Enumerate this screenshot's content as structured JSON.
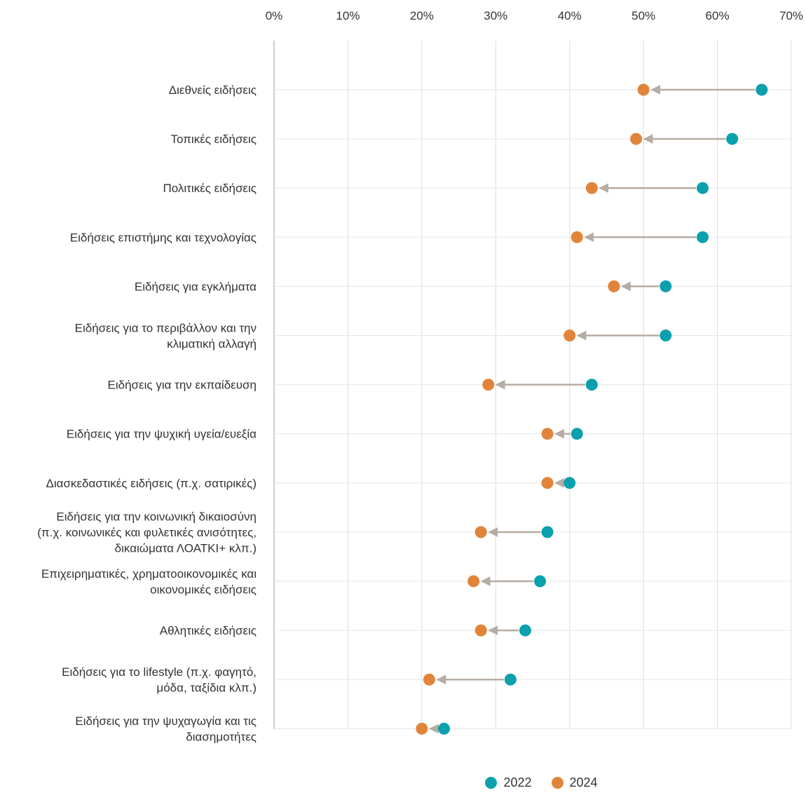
{
  "chart_data": {
    "type": "dumbbell",
    "xlim": [
      0,
      70
    ],
    "x_ticks": [
      "0%",
      "10%",
      "20%",
      "30%",
      "40%",
      "50%",
      "60%",
      "70%"
    ],
    "tick_values": [
      0,
      10,
      20,
      30,
      40,
      50,
      60,
      70
    ],
    "grid": true,
    "legend_position": "bottom",
    "colors": {
      "2022": "#0ca0ad",
      "2024": "#e0843a",
      "arrow": "#b5aca3"
    },
    "categories": [
      [
        "Διεθνείς ειδήσεις"
      ],
      [
        "Τοπικές ειδήσεις"
      ],
      [
        "Πολιτικές ειδήσεις"
      ],
      [
        "Ειδήσεις επιστήμης και τεχνολογίας"
      ],
      [
        "Ειδήσεις για εγκλήματα"
      ],
      [
        "Ειδήσεις για το περιβάλλον και την",
        "κλιματική αλλαγή"
      ],
      [
        "Ειδήσεις για την εκπαίδευση"
      ],
      [
        "Ειδήσεις για την ψυχική υγεία/ευεξία"
      ],
      [
        "Διασκεδαστικές ειδήσεις (π.χ. σατιρικές)"
      ],
      [
        "Ειδήσεις για την κοινωνική δικαιοσύνη",
        "(π.χ. κοινωνικές και φυλετικές ανισότητες,",
        "δικαιώματα ΛΟΑΤΚΙ+ κλπ.)"
      ],
      [
        "Επιχειρηματικές, χρηματοοικονομικές και",
        "οικονομικές ειδήσεις"
      ],
      [
        "Αθλητικές ειδήσεις"
      ],
      [
        "Ειδήσεις για το lifestyle (π.χ. φαγητό,",
        "μόδα, ταξίδια κλπ.)"
      ],
      [
        "Ειδήσεις για την ψυχαγωγία και τις",
        "διασημοτήτες"
      ]
    ],
    "series": [
      {
        "name": "2022",
        "values": [
          66,
          62,
          58,
          58,
          53,
          53,
          43,
          41,
          40,
          37,
          36,
          34,
          32,
          23
        ]
      },
      {
        "name": "2024",
        "values": [
          50,
          49,
          43,
          41,
          46,
          40,
          29,
          37,
          37,
          28,
          27,
          28,
          21,
          20
        ]
      }
    ]
  },
  "legend": {
    "label_2022": "2022",
    "label_2024": "2024"
  }
}
